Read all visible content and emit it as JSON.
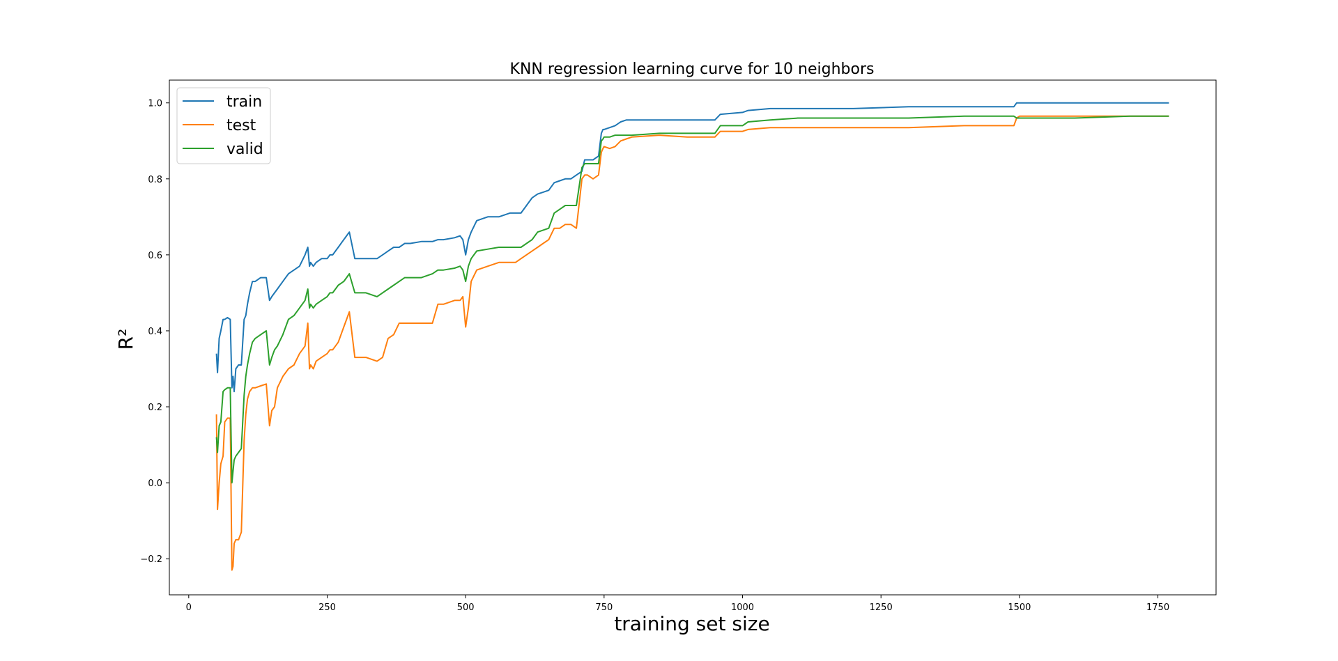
{
  "chart_data": {
    "type": "line",
    "title": "KNN regression learning curve for 10 neighbors",
    "xlabel": "training set size",
    "ylabel": "R²",
    "xlim": [
      -35,
      1855
    ],
    "ylim": [
      -0.295,
      1.06
    ],
    "xticks": [
      0,
      250,
      500,
      750,
      1000,
      1250,
      1500,
      1750
    ],
    "yticks": [
      -0.2,
      0.0,
      0.2,
      0.4,
      0.6,
      0.8,
      1.0
    ],
    "xtick_labels": [
      "0",
      "250",
      "500",
      "750",
      "1000",
      "1250",
      "1500",
      "1750"
    ],
    "ytick_labels": [
      "−0.2",
      "0.0",
      "0.2",
      "0.4",
      "0.6",
      "0.8",
      "1.0"
    ],
    "grid": false,
    "legend_position": "top-left",
    "series": [
      {
        "name": "train",
        "color": "#1f77b4",
        "x": [
          50,
          52,
          55,
          58,
          62,
          65,
          70,
          75,
          78,
          80,
          82,
          85,
          90,
          95,
          100,
          103,
          106,
          110,
          115,
          120,
          130,
          140,
          146,
          150,
          155,
          160,
          170,
          180,
          190,
          200,
          210,
          215,
          218,
          220,
          225,
          230,
          240,
          250,
          255,
          260,
          270,
          280,
          285,
          290,
          300,
          310,
          320,
          340,
          350,
          360,
          370,
          380,
          390,
          400,
          420,
          440,
          450,
          460,
          480,
          490,
          495,
          500,
          505,
          510,
          520,
          540,
          560,
          580,
          590,
          600,
          620,
          630,
          640,
          650,
          660,
          670,
          680,
          690,
          700,
          710,
          715,
          720,
          730,
          740,
          745,
          748,
          750,
          760,
          770,
          780,
          790,
          800,
          850,
          900,
          950,
          960,
          1000,
          1010,
          1050,
          1100,
          1200,
          1300,
          1400,
          1490,
          1495,
          1500,
          1600,
          1700,
          1770
        ],
        "y": [
          0.34,
          0.29,
          0.38,
          0.4,
          0.43,
          0.43,
          0.435,
          0.43,
          0.25,
          0.28,
          0.24,
          0.3,
          0.31,
          0.31,
          0.43,
          0.44,
          0.47,
          0.5,
          0.53,
          0.53,
          0.54,
          0.54,
          0.48,
          0.49,
          0.5,
          0.51,
          0.53,
          0.55,
          0.56,
          0.57,
          0.6,
          0.62,
          0.57,
          0.58,
          0.57,
          0.58,
          0.59,
          0.59,
          0.6,
          0.6,
          0.62,
          0.64,
          0.65,
          0.66,
          0.59,
          0.59,
          0.59,
          0.59,
          0.6,
          0.61,
          0.62,
          0.62,
          0.63,
          0.63,
          0.635,
          0.635,
          0.64,
          0.64,
          0.645,
          0.65,
          0.64,
          0.6,
          0.64,
          0.66,
          0.69,
          0.7,
          0.7,
          0.71,
          0.71,
          0.71,
          0.75,
          0.76,
          0.765,
          0.77,
          0.79,
          0.795,
          0.8,
          0.8,
          0.81,
          0.82,
          0.85,
          0.85,
          0.85,
          0.86,
          0.92,
          0.93,
          0.93,
          0.935,
          0.94,
          0.95,
          0.955,
          0.955,
          0.955,
          0.955,
          0.955,
          0.97,
          0.975,
          0.98,
          0.985,
          0.985,
          0.985,
          0.99,
          0.99,
          0.99,
          1.0,
          1.0,
          1.0,
          1.0,
          1.0
        ]
      },
      {
        "name": "test",
        "color": "#ff7f0e",
        "x": [
          50,
          52,
          55,
          58,
          62,
          65,
          70,
          75,
          78,
          80,
          82,
          85,
          90,
          95,
          100,
          103,
          106,
          110,
          115,
          120,
          130,
          140,
          146,
          150,
          155,
          160,
          170,
          180,
          190,
          200,
          210,
          215,
          218,
          220,
          225,
          230,
          240,
          250,
          255,
          260,
          270,
          280,
          285,
          290,
          300,
          310,
          320,
          340,
          350,
          360,
          370,
          380,
          390,
          400,
          420,
          440,
          450,
          460,
          480,
          490,
          495,
          500,
          505,
          510,
          520,
          540,
          560,
          580,
          590,
          600,
          620,
          630,
          640,
          650,
          660,
          670,
          680,
          690,
          700,
          710,
          715,
          720,
          730,
          740,
          745,
          748,
          750,
          760,
          770,
          780,
          790,
          800,
          850,
          900,
          950,
          960,
          1000,
          1010,
          1050,
          1100,
          1200,
          1300,
          1400,
          1490,
          1495,
          1500,
          1600,
          1700,
          1770
        ],
        "y": [
          0.18,
          -0.07,
          0.0,
          0.05,
          0.07,
          0.16,
          0.17,
          0.17,
          -0.23,
          -0.22,
          -0.16,
          -0.15,
          -0.15,
          -0.13,
          0.11,
          0.18,
          0.22,
          0.24,
          0.25,
          0.25,
          0.255,
          0.26,
          0.15,
          0.19,
          0.2,
          0.25,
          0.28,
          0.3,
          0.31,
          0.34,
          0.36,
          0.42,
          0.3,
          0.31,
          0.3,
          0.32,
          0.33,
          0.34,
          0.35,
          0.35,
          0.37,
          0.41,
          0.43,
          0.45,
          0.33,
          0.33,
          0.33,
          0.32,
          0.33,
          0.38,
          0.39,
          0.42,
          0.42,
          0.42,
          0.42,
          0.42,
          0.47,
          0.47,
          0.48,
          0.48,
          0.49,
          0.41,
          0.46,
          0.53,
          0.56,
          0.57,
          0.58,
          0.58,
          0.58,
          0.59,
          0.61,
          0.62,
          0.63,
          0.64,
          0.67,
          0.67,
          0.68,
          0.68,
          0.67,
          0.8,
          0.81,
          0.81,
          0.8,
          0.81,
          0.87,
          0.88,
          0.885,
          0.88,
          0.885,
          0.9,
          0.905,
          0.91,
          0.915,
          0.91,
          0.91,
          0.925,
          0.925,
          0.93,
          0.935,
          0.935,
          0.935,
          0.935,
          0.94,
          0.94,
          0.96,
          0.965,
          0.965,
          0.965,
          0.965
        ]
      },
      {
        "name": "valid",
        "color": "#2ca02c",
        "x": [
          50,
          52,
          55,
          58,
          62,
          65,
          70,
          75,
          78,
          80,
          82,
          85,
          90,
          95,
          100,
          103,
          106,
          110,
          115,
          120,
          130,
          140,
          146,
          150,
          155,
          160,
          170,
          180,
          190,
          200,
          210,
          215,
          218,
          220,
          225,
          230,
          240,
          250,
          255,
          260,
          270,
          280,
          285,
          290,
          300,
          310,
          320,
          340,
          350,
          360,
          370,
          380,
          390,
          400,
          420,
          440,
          450,
          460,
          480,
          490,
          495,
          500,
          505,
          510,
          520,
          540,
          560,
          580,
          590,
          600,
          620,
          630,
          640,
          650,
          660,
          670,
          680,
          690,
          700,
          710,
          715,
          720,
          730,
          740,
          745,
          748,
          750,
          760,
          770,
          780,
          790,
          800,
          850,
          900,
          950,
          960,
          1000,
          1010,
          1050,
          1100,
          1200,
          1300,
          1400,
          1490,
          1495,
          1500,
          1600,
          1700,
          1770
        ],
        "y": [
          0.12,
          0.08,
          0.15,
          0.16,
          0.24,
          0.245,
          0.25,
          0.25,
          0.0,
          0.03,
          0.06,
          0.07,
          0.08,
          0.09,
          0.23,
          0.28,
          0.31,
          0.34,
          0.37,
          0.38,
          0.39,
          0.4,
          0.31,
          0.33,
          0.35,
          0.36,
          0.39,
          0.43,
          0.44,
          0.46,
          0.48,
          0.51,
          0.46,
          0.47,
          0.46,
          0.47,
          0.48,
          0.49,
          0.5,
          0.5,
          0.52,
          0.53,
          0.54,
          0.55,
          0.5,
          0.5,
          0.5,
          0.49,
          0.5,
          0.51,
          0.52,
          0.53,
          0.54,
          0.54,
          0.54,
          0.55,
          0.56,
          0.56,
          0.565,
          0.57,
          0.56,
          0.53,
          0.57,
          0.59,
          0.61,
          0.615,
          0.62,
          0.62,
          0.62,
          0.62,
          0.64,
          0.66,
          0.665,
          0.67,
          0.71,
          0.72,
          0.73,
          0.73,
          0.73,
          0.83,
          0.84,
          0.84,
          0.84,
          0.84,
          0.9,
          0.905,
          0.91,
          0.91,
          0.915,
          0.915,
          0.915,
          0.915,
          0.92,
          0.92,
          0.92,
          0.94,
          0.94,
          0.95,
          0.955,
          0.96,
          0.96,
          0.96,
          0.965,
          0.965,
          0.96,
          0.96,
          0.96,
          0.965,
          0.965
        ]
      }
    ]
  }
}
